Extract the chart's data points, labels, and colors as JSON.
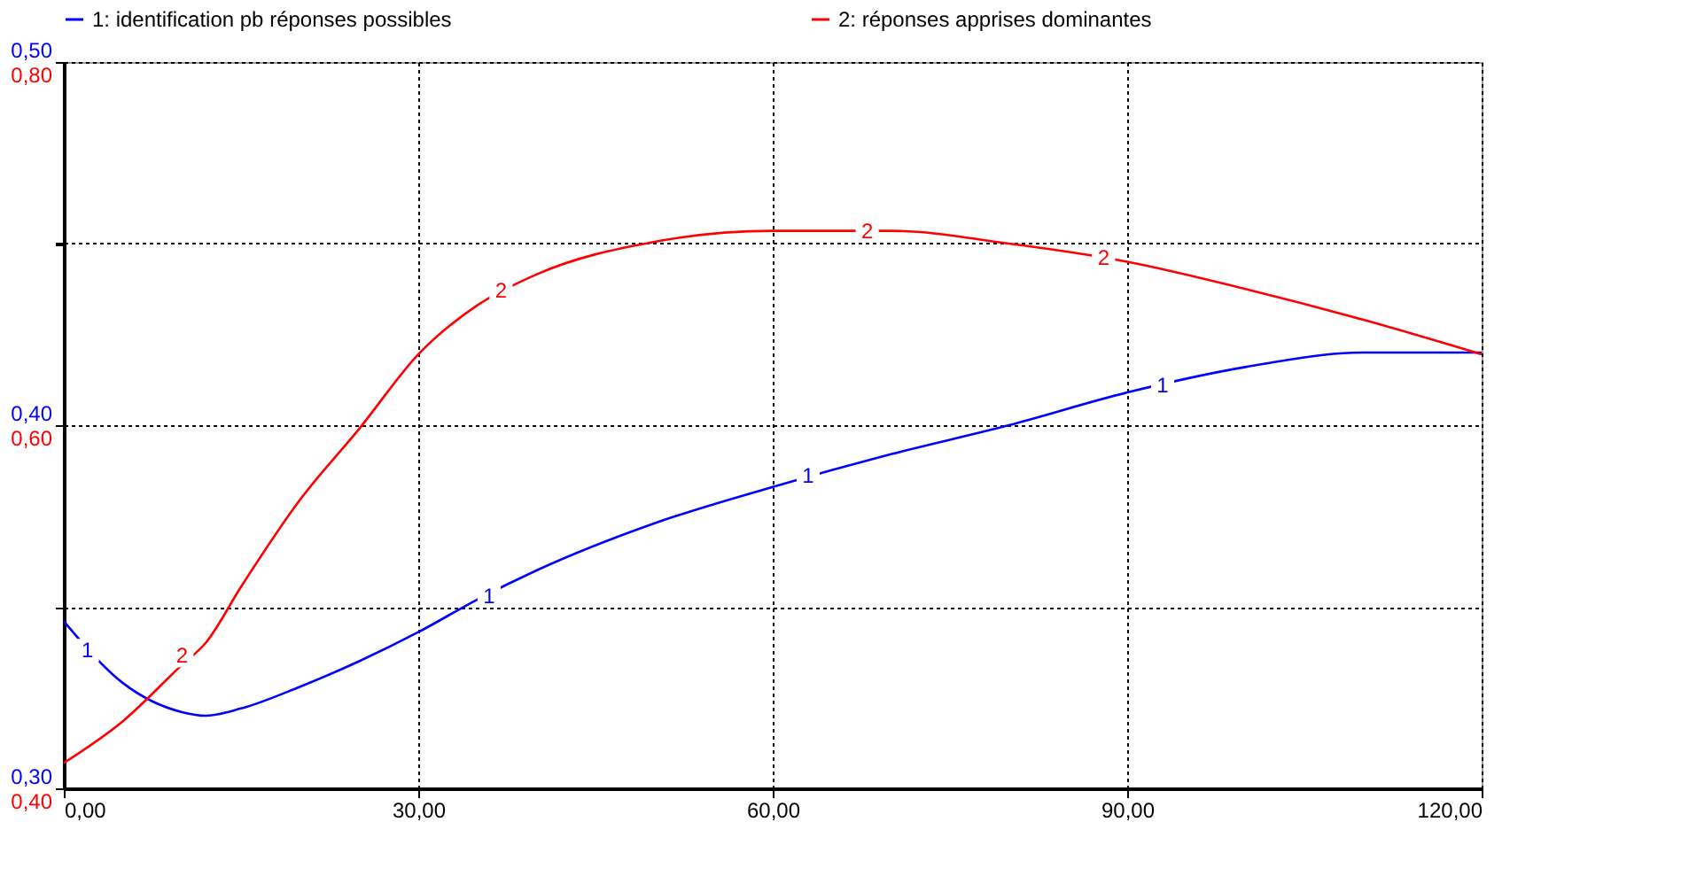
{
  "chart_data": {
    "type": "line",
    "legend": "top",
    "grid": true,
    "line_style": "solid",
    "marker": "none",
    "x": [
      0,
      5,
      10,
      12,
      15,
      20,
      25,
      30,
      35,
      40,
      50,
      60,
      70,
      80,
      90,
      100,
      110,
      120
    ],
    "xlim": [
      0,
      120
    ],
    "xticks": [
      {
        "value": 0,
        "label": "0,00"
      },
      {
        "value": 30,
        "label": "30,00"
      },
      {
        "value": 60,
        "label": "60,00"
      },
      {
        "value": 90,
        "label": "90,00"
      },
      {
        "value": 120,
        "label": "120,00"
      }
    ],
    "ylim": [
      0.3,
      0.5
    ],
    "yticks": [
      {
        "value": 0.3,
        "label": "0,30"
      },
      {
        "value": 0.35,
        "label": null
      },
      {
        "value": 0.4,
        "label": "0,40"
      },
      {
        "value": 0.45,
        "label": null
      },
      {
        "value": 0.5,
        "label": "0,50"
      }
    ],
    "y2lim": [
      0.4,
      0.8
    ],
    "y2ticks": [
      {
        "value": 0.4,
        "label": "0,40"
      },
      {
        "value": 0.5,
        "label": null
      },
      {
        "value": 0.6,
        "label": "0,60"
      },
      {
        "value": 0.7,
        "label": null
      },
      {
        "value": 0.8,
        "label": "0,80"
      }
    ],
    "series": [
      {
        "name": "1: identification pb réponses possibles",
        "color": "#0000ff",
        "values": [
          0.346,
          0.329,
          0.321,
          0.32,
          0.322,
          0.328,
          0.335,
          0.343,
          0.352,
          0.36,
          0.373,
          0.383,
          0.392,
          0.4,
          0.409,
          0.416,
          0.42,
          0.42
        ]
      },
      {
        "name": "2: réponses apprises dominantes",
        "color": "#ff0000",
        "axis": "y2",
        "values": [
          0.414,
          0.437,
          0.468,
          0.48,
          0.511,
          0.559,
          0.598,
          0.639,
          0.666,
          0.683,
          0.701,
          0.707,
          0.707,
          0.7,
          0.69,
          0.675,
          0.658,
          0.639
        ]
      }
    ],
    "annotations": [
      {
        "text": "1",
        "x": 2,
        "y": 0.338
      },
      {
        "text": "2",
        "x": 10,
        "y": 0.3365
      },
      {
        "text": "2",
        "x": 37,
        "y": 0.437
      },
      {
        "text": "1",
        "x": 36,
        "y": 0.353
      },
      {
        "text": "1",
        "x": 63,
        "y": 0.386
      },
      {
        "text": "2",
        "x": 68,
        "y": 0.4535
      },
      {
        "text": "2",
        "x": 88,
        "y": 0.446
      },
      {
        "text": "1",
        "x": 93,
        "y": 0.411
      }
    ]
  }
}
